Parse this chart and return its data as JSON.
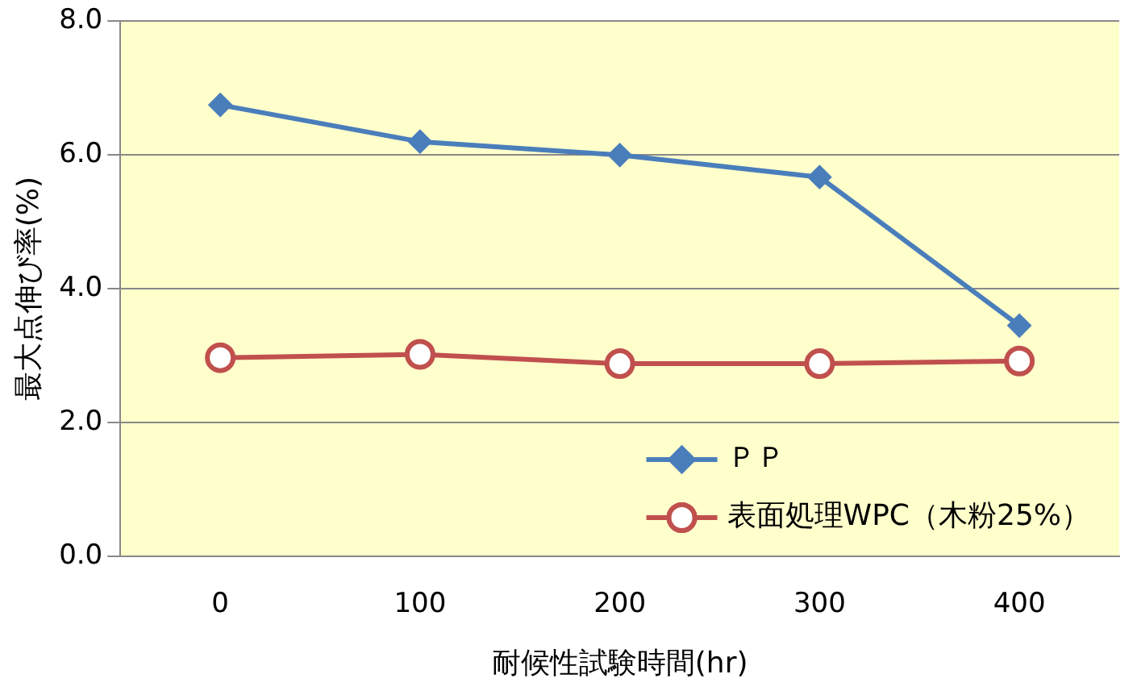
{
  "chart_data": {
    "type": "line",
    "xlabel": "耐候性試験時間(hr)",
    "ylabel": "最大点伸び率(%)",
    "categories": [
      "0",
      "100",
      "200",
      "300",
      "400"
    ],
    "series": [
      {
        "name": "ＰＰ",
        "color": "#4a7ebb",
        "marker": "diamond",
        "values": [
          6.75,
          6.2,
          6.0,
          5.67,
          3.45
        ]
      },
      {
        "name": "表面処理WPC（木粉25%）",
        "color": "#c0504d",
        "marker": "circle",
        "values": [
          2.97,
          3.02,
          2.88,
          2.88,
          2.92
        ]
      }
    ],
    "ylim": [
      0,
      8
    ],
    "yticks": [
      {
        "value": 0,
        "label": "0.0"
      },
      {
        "value": 2,
        "label": "2.0"
      },
      {
        "value": 4,
        "label": "4.0"
      },
      {
        "value": 6,
        "label": "6.0"
      },
      {
        "value": 8,
        "label": "8.0"
      }
    ],
    "grid": "y",
    "legend": "bottom right",
    "line_style": "solid"
  }
}
